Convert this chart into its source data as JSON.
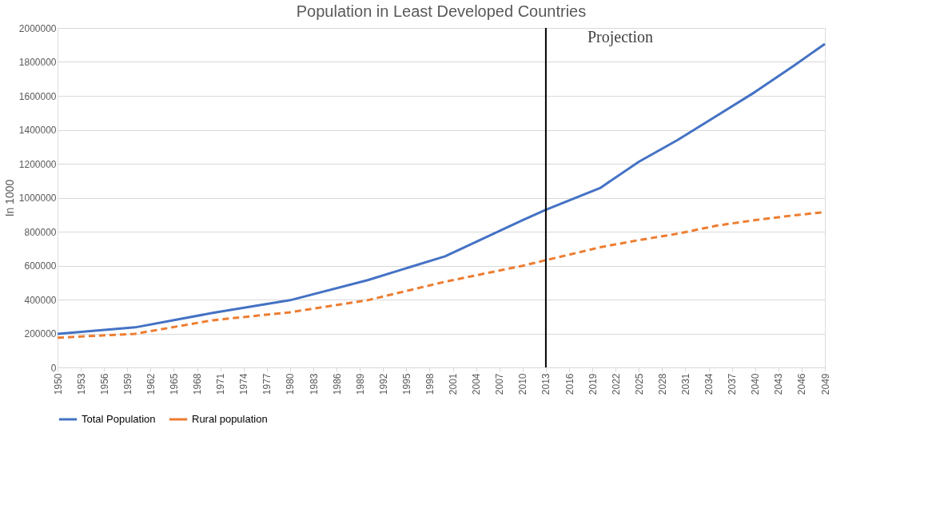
{
  "chart_data": {
    "type": "line",
    "title": "Population in Least Developed Countries",
    "ylabel": "In 1000",
    "xlim": [
      1950,
      2049
    ],
    "xticks": [
      1950,
      1953,
      1956,
      1959,
      1962,
      1965,
      1968,
      1971,
      1974,
      1977,
      1980,
      1983,
      1986,
      1989,
      1992,
      1995,
      1998,
      2001,
      2004,
      2007,
      2010,
      2013,
      2016,
      2019,
      2022,
      2025,
      2028,
      2031,
      2034,
      2037,
      2040,
      2043,
      2046,
      2049
    ],
    "ylim": [
      0,
      2000000
    ],
    "yticks": [
      0,
      200000,
      400000,
      600000,
      800000,
      1000000,
      1200000,
      1400000,
      1600000,
      1800000,
      2000000
    ],
    "grid": "y",
    "legend": "bottom",
    "marker": "none",
    "series": [
      {
        "name": "Total Population",
        "color": "#4472c4",
        "line_style": "solid",
        "x": [
          1950,
          1960,
          1970,
          1980,
          1990,
          2000,
          2010,
          2013,
          2020,
          2025,
          2030,
          2035,
          2040,
          2045,
          2049
        ],
        "values": [
          198000,
          236000,
          321000,
          396000,
          514000,
          655000,
          868000,
          929000,
          1057000,
          1212000,
          1340000,
          1481000,
          1623000,
          1778000,
          1906000
        ]
      },
      {
        "name": "Rural population",
        "color": "#ed7d31",
        "line_style": "dashed",
        "x": [
          1950,
          1960,
          1970,
          1980,
          1990,
          2000,
          2010,
          2013,
          2020,
          2025,
          2030,
          2035,
          2040,
          2045,
          2049
        ],
        "values": [
          175000,
          198000,
          278000,
          325000,
          396000,
          505000,
          599000,
          632000,
          708000,
          750000,
          788000,
          835000,
          868000,
          896000,
          915000
        ]
      }
    ],
    "ref_lines": [
      {
        "axis": "x",
        "value": 2013,
        "label": "Projection",
        "color": "#000000"
      }
    ]
  }
}
